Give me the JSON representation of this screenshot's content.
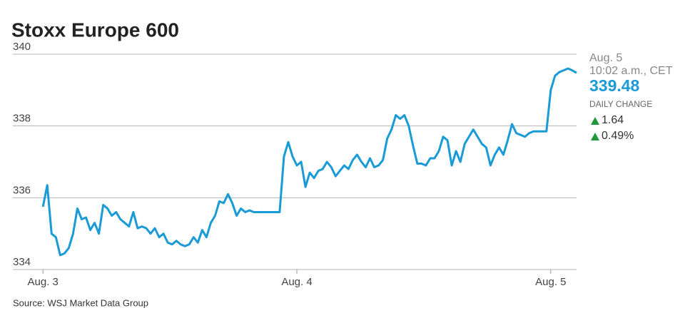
{
  "chart_data": {
    "type": "line",
    "title": "Stoxx Europe 600",
    "source": "Source: WSJ Market Data Group",
    "panel": {
      "date": "Aug. 5",
      "time": "10:02 a.m., CET",
      "last": "339.48",
      "change_label": "DAILY CHANGE",
      "change": "1.64",
      "change_pct": "0.49%"
    },
    "x": [
      0,
      1,
      2,
      3,
      4,
      5,
      6,
      7,
      8,
      9,
      10,
      11,
      12,
      13,
      14,
      15,
      16,
      17,
      18,
      19,
      20,
      21,
      22,
      23,
      24,
      25,
      26,
      27,
      28,
      29,
      30,
      31,
      32,
      33,
      34,
      35,
      36,
      37,
      38,
      39,
      40,
      41,
      42,
      43,
      44,
      45,
      46,
      47,
      48,
      49,
      50,
      51,
      52,
      53,
      54,
      55,
      56,
      57,
      58,
      59,
      60,
      61,
      62,
      63,
      64,
      65,
      66,
      67,
      68,
      69,
      70,
      71,
      72,
      73,
      74,
      75,
      76,
      77,
      78,
      79,
      80,
      81,
      82,
      83,
      84,
      85,
      86,
      87,
      88,
      89,
      90,
      91,
      92,
      93,
      94,
      95,
      96,
      97,
      98,
      99,
      100,
      101,
      102,
      103,
      104,
      105,
      106,
      107,
      108,
      109,
      110,
      111,
      112,
      113,
      114,
      115,
      116,
      117,
      118,
      119,
      120,
      121,
      122,
      123,
      124
    ],
    "series": [
      {
        "name": "Stoxx Europe 600",
        "color": "#1a9ad6",
        "values": [
          335.75,
          336.35,
          335.0,
          334.9,
          334.4,
          334.45,
          334.6,
          335.0,
          335.7,
          335.4,
          335.45,
          335.1,
          335.3,
          335.0,
          335.8,
          335.7,
          335.5,
          335.6,
          335.4,
          335.3,
          335.2,
          335.6,
          335.15,
          335.2,
          335.15,
          335.0,
          335.15,
          334.9,
          335.0,
          334.75,
          334.7,
          334.8,
          334.7,
          334.65,
          334.7,
          334.9,
          334.75,
          335.1,
          334.9,
          335.3,
          335.5,
          335.9,
          335.85,
          336.1,
          335.85,
          335.5,
          335.7,
          335.6,
          335.65,
          335.6,
          335.6,
          335.6,
          335.6,
          335.6,
          335.6,
          335.6,
          337.15,
          337.55,
          337.15,
          336.9,
          337.0,
          336.3,
          336.7,
          336.55,
          336.75,
          336.8,
          337.0,
          336.85,
          336.6,
          336.75,
          336.9,
          336.8,
          337.05,
          337.2,
          337.0,
          336.85,
          337.1,
          336.85,
          336.9,
          337.05,
          337.65,
          337.9,
          338.3,
          338.2,
          338.3,
          338.0,
          337.45,
          336.95,
          336.95,
          336.9,
          337.1,
          337.1,
          337.3,
          337.7,
          337.6,
          336.9,
          337.3,
          337.0,
          337.5,
          337.7,
          337.9,
          337.7,
          337.5,
          337.4,
          336.9,
          337.2,
          337.4,
          337.2,
          337.6,
          338.05,
          337.8,
          337.75,
          337.7,
          337.8,
          337.85,
          337.85,
          337.85,
          337.85,
          339.0,
          339.4,
          339.5,
          339.55,
          339.6,
          339.55,
          339.48
        ]
      }
    ],
    "xlim": [
      -7,
      124
    ],
    "xticks": [
      {
        "value": 0,
        "label": "Aug. 3"
      },
      {
        "value": 59,
        "label": "Aug. 4"
      },
      {
        "value": 118,
        "label": "Aug. 5"
      }
    ],
    "ylim": [
      334,
      340
    ],
    "yticks": [
      334,
      336,
      338,
      340
    ],
    "grid": true
  }
}
